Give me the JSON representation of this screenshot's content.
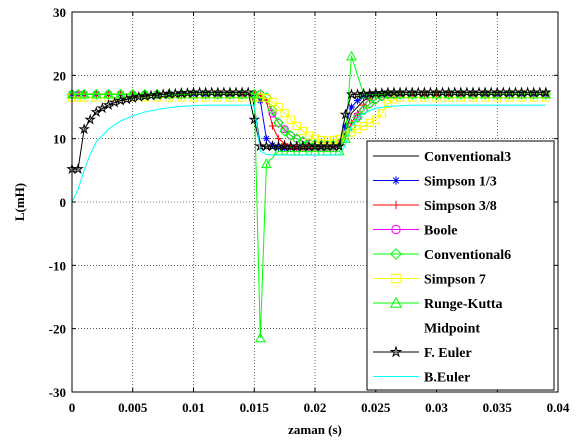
{
  "chart_data": {
    "type": "line",
    "title": "",
    "xlabel": "zaman (s)",
    "ylabel": "L(mH)",
    "xlim": [
      0,
      0.04
    ],
    "ylim": [
      -30,
      30
    ],
    "xticks": [
      0,
      0.005,
      0.01,
      0.015,
      0.02,
      0.025,
      0.03,
      0.035,
      0.04
    ],
    "xtick_labels": [
      "0",
      "0.005",
      "0.01",
      "0.015",
      "0.02",
      "0.025",
      "0.03",
      "0.035",
      "0.04"
    ],
    "yticks": [
      -30,
      -20,
      -10,
      0,
      10,
      20,
      30
    ],
    "ytick_labels": [
      "-30",
      "-20",
      "-10",
      "0",
      "10",
      "20",
      "30"
    ],
    "grid": true,
    "legend_position": "bottom-right",
    "series": [
      {
        "name": "Conventional3",
        "color": "#000000",
        "marker": "none",
        "x": [
          0,
          0.0005,
          0.001,
          0.002,
          0.003,
          0.005,
          0.007,
          0.01,
          0.0125,
          0.0148,
          0.015,
          0.0155,
          0.016,
          0.017,
          0.018,
          0.019,
          0.02,
          0.021,
          0.0215,
          0.022,
          0.0225,
          0.023,
          0.024,
          0.025,
          0.027,
          0.03,
          0.035,
          0.039
        ],
        "y": [
          17,
          17,
          17,
          17,
          17,
          17,
          17,
          17,
          17,
          17,
          15,
          9,
          8.5,
          8.5,
          8.5,
          8.5,
          8.5,
          8.5,
          8.5,
          9,
          11,
          14,
          16,
          17,
          17,
          17,
          17,
          17
        ]
      },
      {
        "name": "Simpson 1/3",
        "color": "#0000FF",
        "marker": "star",
        "x": [
          0,
          0.0005,
          0.001,
          0.002,
          0.003,
          0.004,
          0.005,
          0.006,
          0.007,
          0.008,
          0.009,
          0.01,
          0.011,
          0.012,
          0.013,
          0.014,
          0.015,
          0.0155,
          0.016,
          0.0165,
          0.017,
          0.0175,
          0.018,
          0.0185,
          0.019,
          0.0195,
          0.02,
          0.0205,
          0.021,
          0.0215,
          0.022,
          0.0225,
          0.023,
          0.0235,
          0.024,
          0.0245,
          0.025,
          0.0255,
          0.026,
          0.0265,
          0.027,
          0.028,
          0.029,
          0.03,
          0.031,
          0.032,
          0.033,
          0.034,
          0.035,
          0.036,
          0.037,
          0.038,
          0.039
        ],
        "y": [
          17,
          17,
          17,
          17,
          17,
          17,
          17,
          17,
          17,
          17,
          17,
          17,
          17,
          17,
          17,
          17,
          17,
          16,
          10,
          9,
          8.6,
          8.5,
          8.5,
          8.5,
          8.5,
          8.5,
          8.5,
          8.5,
          8.5,
          8.6,
          9,
          12,
          15,
          16,
          16.6,
          17,
          17,
          17,
          17,
          17,
          17,
          17,
          17,
          17,
          17,
          17,
          17,
          17,
          17,
          17,
          17,
          17,
          17
        ]
      },
      {
        "name": "Simpson 3/8",
        "color": "#FF0000",
        "marker": "plus",
        "x": [
          0,
          0.0005,
          0.001,
          0.002,
          0.003,
          0.004,
          0.005,
          0.006,
          0.007,
          0.008,
          0.009,
          0.01,
          0.011,
          0.012,
          0.013,
          0.014,
          0.015,
          0.0155,
          0.016,
          0.0165,
          0.017,
          0.0175,
          0.018,
          0.0185,
          0.019,
          0.0195,
          0.02,
          0.0205,
          0.021,
          0.0215,
          0.022,
          0.0225,
          0.023,
          0.0235,
          0.024,
          0.0245,
          0.025,
          0.0255,
          0.026,
          0.0265,
          0.027,
          0.028,
          0.029,
          0.03,
          0.031,
          0.032,
          0.033,
          0.034,
          0.035,
          0.036,
          0.037,
          0.038,
          0.039
        ],
        "y": [
          17,
          17,
          17,
          17,
          17,
          17,
          17,
          17,
          17,
          17,
          17,
          17,
          17,
          17,
          17,
          17,
          17,
          16.8,
          16,
          12,
          10,
          9.2,
          8.8,
          8.6,
          8.6,
          8.5,
          8.5,
          8.5,
          8.6,
          8.7,
          9,
          10.5,
          12.5,
          14,
          15.3,
          16.2,
          16.8,
          17,
          17,
          17,
          17,
          17,
          17,
          17,
          17,
          17,
          17,
          17,
          17,
          17,
          17,
          17,
          17
        ]
      },
      {
        "name": "Boole",
        "color": "#FF00FF",
        "marker": "circle",
        "x": [
          0,
          0.0005,
          0.001,
          0.002,
          0.003,
          0.004,
          0.005,
          0.006,
          0.007,
          0.008,
          0.009,
          0.01,
          0.011,
          0.012,
          0.013,
          0.014,
          0.015,
          0.0155,
          0.016,
          0.0165,
          0.017,
          0.0175,
          0.018,
          0.0185,
          0.019,
          0.0195,
          0.02,
          0.0205,
          0.021,
          0.0215,
          0.022,
          0.0225,
          0.023,
          0.0235,
          0.024,
          0.0245,
          0.025,
          0.0255,
          0.026,
          0.0265,
          0.027,
          0.028,
          0.029,
          0.03,
          0.031,
          0.032,
          0.033,
          0.034,
          0.035,
          0.036,
          0.037,
          0.038,
          0.039
        ],
        "y": [
          17,
          17,
          17,
          17,
          17,
          17,
          17,
          17,
          17,
          17,
          17,
          17,
          17,
          17,
          17,
          17,
          17,
          17,
          16.5,
          14,
          12.5,
          11.5,
          10.5,
          10,
          9.5,
          9.2,
          9,
          8.9,
          8.9,
          8.9,
          9.2,
          10.5,
          12,
          13.5,
          14.5,
          15.5,
          16.2,
          16.7,
          17,
          17,
          17,
          17,
          17,
          17,
          17,
          17,
          17,
          17,
          17,
          17,
          17,
          17,
          17
        ]
      },
      {
        "name": "Conventional6",
        "color": "#00FF00",
        "marker": "diamond",
        "x": [
          0,
          0.0005,
          0.001,
          0.002,
          0.003,
          0.004,
          0.005,
          0.006,
          0.007,
          0.008,
          0.009,
          0.01,
          0.011,
          0.012,
          0.013,
          0.014,
          0.015,
          0.0155,
          0.016,
          0.0165,
          0.017,
          0.0175,
          0.018,
          0.0185,
          0.019,
          0.0195,
          0.02,
          0.0205,
          0.021,
          0.0215,
          0.022,
          0.0225,
          0.023,
          0.0235,
          0.024,
          0.0245,
          0.025,
          0.0255,
          0.026,
          0.0265,
          0.027,
          0.028,
          0.029,
          0.03,
          0.031,
          0.032,
          0.033,
          0.034,
          0.035,
          0.036,
          0.037,
          0.038,
          0.039
        ],
        "y": [
          17,
          17,
          17,
          17,
          17,
          17,
          17,
          17,
          17,
          17,
          17,
          17,
          17,
          17,
          17,
          17,
          17,
          17,
          16.5,
          14.5,
          12.5,
          11.2,
          10.5,
          10,
          9.6,
          9.3,
          9.1,
          9,
          9,
          9,
          9.3,
          10.5,
          12,
          13.3,
          14.5,
          15.5,
          16.2,
          16.7,
          17,
          17,
          17,
          17,
          17,
          17,
          17,
          17,
          17,
          17,
          17,
          17,
          17,
          17,
          17
        ]
      },
      {
        "name": "Simpson 7",
        "color": "#FFFF00",
        "marker": "square",
        "x": [
          0,
          0.0005,
          0.001,
          0.002,
          0.003,
          0.004,
          0.005,
          0.006,
          0.007,
          0.008,
          0.009,
          0.01,
          0.011,
          0.012,
          0.013,
          0.014,
          0.015,
          0.0155,
          0.016,
          0.0165,
          0.017,
          0.0175,
          0.018,
          0.0185,
          0.019,
          0.0195,
          0.02,
          0.0205,
          0.021,
          0.0215,
          0.022,
          0.0225,
          0.023,
          0.0235,
          0.024,
          0.0245,
          0.025,
          0.0255,
          0.026,
          0.0265,
          0.027,
          0.028,
          0.029,
          0.03,
          0.031,
          0.032,
          0.033,
          0.034,
          0.035,
          0.036,
          0.037,
          0.038,
          0.039
        ],
        "y": [
          16.5,
          16.5,
          16.5,
          16.5,
          16.5,
          16.5,
          16.5,
          16.5,
          16.5,
          16.5,
          16.5,
          16.5,
          16.5,
          16.5,
          16.5,
          16.5,
          16.5,
          16.5,
          16.4,
          15.8,
          15,
          14,
          13,
          12,
          11.2,
          10.5,
          10,
          9.8,
          9.7,
          9.8,
          10,
          10.5,
          11,
          11.5,
          12,
          12.5,
          13,
          14,
          15.5,
          16.2,
          16.5,
          16.5,
          16.5,
          16.5,
          16.5,
          16.5,
          16.5,
          16.5,
          16.5,
          16.5,
          16.5,
          16.5,
          16.5
        ]
      },
      {
        "name": "Runge-Kutta Midpoint",
        "color": "#00FF00",
        "marker": "triangle",
        "x": [
          0,
          0.001,
          0.002,
          0.003,
          0.004,
          0.005,
          0.006,
          0.007,
          0.008,
          0.009,
          0.01,
          0.011,
          0.012,
          0.013,
          0.014,
          0.015,
          0.0155,
          0.016,
          0.017,
          0.018,
          0.019,
          0.02,
          0.021,
          0.022,
          0.0225,
          0.023,
          0.024,
          0.025,
          0.026,
          0.027,
          0.028,
          0.029,
          0.03,
          0.031,
          0.032,
          0.033,
          0.034,
          0.035,
          0.036,
          0.037,
          0.038,
          0.039
        ],
        "y": [
          17,
          17,
          17,
          17,
          17,
          17,
          17,
          17,
          17,
          17,
          17,
          17,
          17,
          17,
          17,
          17,
          -21.5,
          6,
          8,
          8,
          8,
          8,
          8,
          8,
          10,
          23,
          17,
          17,
          17,
          17,
          17,
          17,
          17,
          17,
          17,
          17,
          17,
          17,
          17,
          17,
          17,
          17
        ]
      },
      {
        "name": "F. Euler",
        "color": "#000000",
        "marker": "hexagram",
        "x": [
          0,
          0.0005,
          0.001,
          0.0015,
          0.002,
          0.0025,
          0.003,
          0.0035,
          0.004,
          0.0045,
          0.005,
          0.0055,
          0.006,
          0.0065,
          0.007,
          0.0075,
          0.008,
          0.0085,
          0.009,
          0.0095,
          0.01,
          0.0105,
          0.011,
          0.0115,
          0.012,
          0.0125,
          0.013,
          0.0135,
          0.014,
          0.0145,
          0.015,
          0.0155,
          0.016,
          0.0165,
          0.017,
          0.0175,
          0.018,
          0.0185,
          0.019,
          0.0195,
          0.02,
          0.0205,
          0.021,
          0.0215,
          0.022,
          0.0225,
          0.023,
          0.0235,
          0.024,
          0.0245,
          0.025,
          0.0255,
          0.026,
          0.0265,
          0.027,
          0.0275,
          0.028,
          0.0285,
          0.029,
          0.0295,
          0.03,
          0.0305,
          0.031,
          0.0315,
          0.032,
          0.0325,
          0.033,
          0.0335,
          0.034,
          0.0345,
          0.035,
          0.0355,
          0.036,
          0.0365,
          0.037,
          0.0375,
          0.038,
          0.0385,
          0.039
        ],
        "y": [
          5.2,
          5.2,
          11.5,
          13,
          14.2,
          14.8,
          15.3,
          15.7,
          16,
          16.2,
          16.4,
          16.6,
          16.7,
          16.8,
          16.9,
          17,
          17.1,
          17.1,
          17.2,
          17.2,
          17.3,
          17.3,
          17.3,
          17.3,
          17.3,
          17.3,
          17.3,
          17.3,
          17.3,
          17.3,
          13,
          8.8,
          8.8,
          8.8,
          8.8,
          8.8,
          8.8,
          8.8,
          8.8,
          8.8,
          8.8,
          8.8,
          8.8,
          8.8,
          8.8,
          13.8,
          17,
          17,
          17.1,
          17.1,
          17.2,
          17.2,
          17.3,
          17.3,
          17.3,
          17.3,
          17.3,
          17.3,
          17.3,
          17.3,
          17.3,
          17.3,
          17.3,
          17.3,
          17.3,
          17.3,
          17.3,
          17.3,
          17.3,
          17.3,
          17.3,
          17.3,
          17.3,
          17.3,
          17.3,
          17.3,
          17.3,
          17.3,
          17.3
        ]
      },
      {
        "name": "B.Euler",
        "color": "#00FFFF",
        "marker": "none",
        "x": [
          0,
          0.0005,
          0.001,
          0.0015,
          0.002,
          0.003,
          0.004,
          0.005,
          0.006,
          0.007,
          0.008,
          0.009,
          0.01,
          0.011,
          0.012,
          0.013,
          0.014,
          0.015,
          0.0155,
          0.016,
          0.017,
          0.018,
          0.019,
          0.02,
          0.021,
          0.022,
          0.0225,
          0.023,
          0.024,
          0.025,
          0.026,
          0.027,
          0.028,
          0.03,
          0.032,
          0.035,
          0.039
        ],
        "y": [
          0,
          2,
          5,
          7.5,
          9.5,
          11.5,
          12.8,
          13.6,
          14.2,
          14.6,
          14.9,
          15.1,
          15.2,
          15.3,
          15.3,
          15.3,
          15.3,
          15.3,
          8,
          7.5,
          7.4,
          7.4,
          7.4,
          7.4,
          7.4,
          7.4,
          9,
          12,
          14,
          14.8,
          15.1,
          15.2,
          15.3,
          15.3,
          15.3,
          15.3,
          15.3
        ]
      }
    ],
    "legend": {
      "entries": [
        {
          "label": "Conventional3",
          "series": 0
        },
        {
          "label": "Simpson 1/3",
          "series": 1
        },
        {
          "label": "Simpson 3/8",
          "series": 2
        },
        {
          "label": "Boole",
          "series": 3
        },
        {
          "label": "Conventional6",
          "series": 4
        },
        {
          "label": "Simpson 7",
          "series": 5
        },
        {
          "label": "Runge-Kutta",
          "series": 6
        },
        {
          "label": "Midpoint",
          "series": -1
        },
        {
          "label": "F. Euler",
          "series": 7
        },
        {
          "label": "B.Euler",
          "series": 8
        }
      ]
    }
  }
}
